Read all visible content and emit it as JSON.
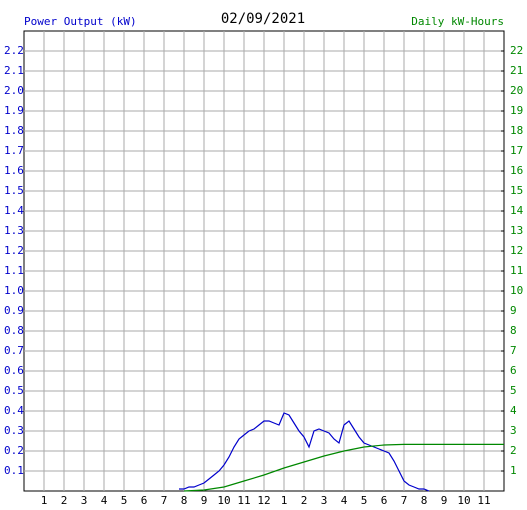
{
  "chart_data": {
    "type": "line",
    "title": "02/09/2021",
    "y_label": "Power Output (kW)",
    "y2_label": "Daily kW-Hours",
    "grid": true,
    "xlim": [
      0,
      24
    ],
    "xticks": [
      1,
      2,
      3,
      4,
      5,
      6,
      7,
      8,
      9,
      10,
      11,
      12,
      {
        "value": 13,
        "label": "1"
      },
      {
        "value": 14,
        "label": "2"
      },
      {
        "value": 15,
        "label": "3"
      },
      {
        "value": 16,
        "label": "4"
      },
      {
        "value": 17,
        "label": "5"
      },
      {
        "value": 18,
        "label": "6"
      },
      {
        "value": 19,
        "label": "7"
      },
      {
        "value": 20,
        "label": "8"
      },
      {
        "value": 21,
        "label": "9"
      },
      {
        "value": 22,
        "label": "10"
      },
      {
        "value": 23,
        "label": "11"
      }
    ],
    "ylim": [
      0,
      2.3
    ],
    "yticks": [
      0.1,
      0.2,
      0.3,
      0.4,
      0.5,
      0.6,
      0.7,
      0.8,
      0.9,
      {
        "value": 1,
        "label": "1.0"
      },
      1.1,
      1.2,
      1.3,
      1.4,
      1.5,
      1.6,
      1.7,
      1.8,
      1.9,
      {
        "value": 2,
        "label": "2.0"
      },
      2.1,
      2.2
    ],
    "y2lim": [
      0,
      23
    ],
    "y2ticks": [
      1,
      2,
      3,
      4,
      5,
      6,
      7,
      8,
      9,
      10,
      11,
      12,
      13,
      14,
      15,
      16,
      17,
      18,
      19,
      20,
      21,
      22
    ],
    "series": [
      {
        "name": "Power Output (kW)",
        "color": "#0000cc",
        "x": [
          7.75,
          8,
          8.25,
          8.5,
          8.75,
          9,
          9.25,
          9.5,
          9.75,
          10,
          10.25,
          10.5,
          10.75,
          11,
          11.25,
          11.5,
          11.75,
          12,
          12.25,
          12.5,
          12.75,
          13,
          13.25,
          13.5,
          13.75,
          14,
          14.25,
          14.5,
          14.75,
          15,
          15.25,
          15.5,
          15.75,
          16,
          16.25,
          16.5,
          16.75,
          17,
          17.25,
          17.5,
          17.75,
          18,
          18.25,
          18.5,
          18.75,
          19,
          19.25,
          19.5,
          19.75,
          20,
          20.25
        ],
        "values": [
          0.01,
          0.01,
          0.02,
          0.02,
          0.03,
          0.04,
          0.06,
          0.08,
          0.1,
          0.13,
          0.17,
          0.22,
          0.26,
          0.28,
          0.3,
          0.31,
          0.33,
          0.35,
          0.35,
          0.34,
          0.33,
          0.39,
          0.38,
          0.34,
          0.3,
          0.27,
          0.22,
          0.3,
          0.31,
          0.3,
          0.29,
          0.26,
          0.24,
          0.33,
          0.35,
          0.31,
          0.27,
          0.24,
          0.23,
          0.22,
          0.21,
          0.2,
          0.19,
          0.15,
          0.1,
          0.05,
          0.03,
          0.02,
          0.01,
          0.01,
          0
        ]
      },
      {
        "name": "Daily kW-Hours",
        "color": "#008800",
        "axis": "y2",
        "x": [
          8,
          9,
          10,
          11,
          12,
          13,
          14,
          15,
          16,
          17,
          18,
          19,
          24
        ],
        "values": [
          0,
          0.05,
          0.2,
          0.5,
          0.8,
          1.15,
          1.45,
          1.75,
          2.0,
          2.2,
          2.3,
          2.33,
          2.33
        ]
      }
    ]
  }
}
